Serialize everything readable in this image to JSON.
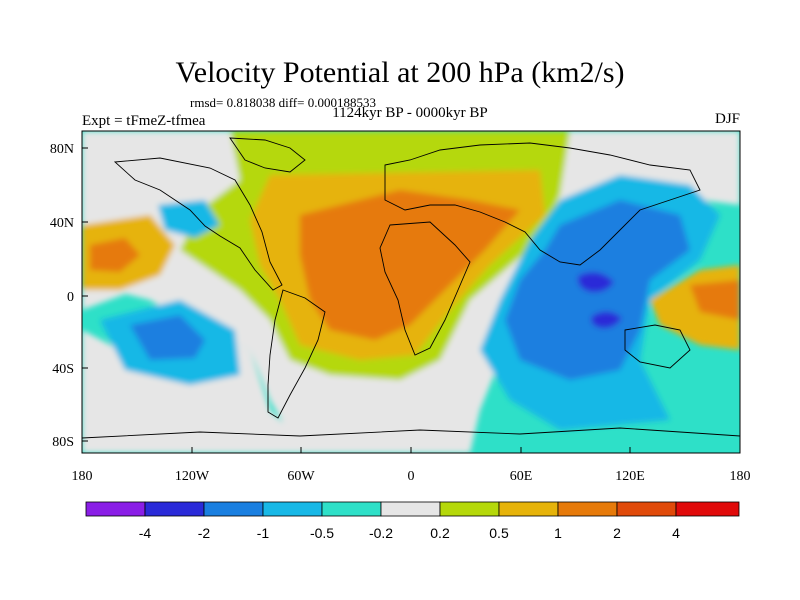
{
  "title": "Velocity Potential at 200 hPa (km2/s)",
  "stats": "rmsd= 0.818038 diff= 0.000188533",
  "period": "1124kyr BP - 0000kyr BP",
  "experiment": "Expt = tFmeZ-tfmea",
  "season": "DJF",
  "axes": {
    "lon_ticks": [
      "180",
      "120W",
      "60W",
      "0",
      "60E",
      "120E",
      "180"
    ],
    "lat_ticks": [
      "80N",
      "40N",
      "0",
      "40S",
      "80S"
    ]
  },
  "colorbar": {
    "labels": [
      "-4",
      "-2",
      "-1",
      "-0.5",
      "-0.2",
      "0.2",
      "0.5",
      "1",
      "2",
      "4"
    ],
    "colors": [
      "#8a1ee6",
      "#2a2ad8",
      "#1a7fe0",
      "#18b8e6",
      "#2ee0c8",
      "#e6e6e6",
      "#b5d80a",
      "#e6b30a",
      "#e67a0a",
      "#e04a0a",
      "#e00a0a"
    ]
  },
  "map_colors": {
    "ocean_base": "#2ee0c8",
    "neutral": "#e6e6e6",
    "pos_0_2": "#b5d80a",
    "pos_0_5": "#e6b30a",
    "pos_1": "#e67a0a",
    "neg_0_5": "#18b8e6",
    "neg_1": "#1a7fe0",
    "neg_2": "#2a2ad8"
  }
}
